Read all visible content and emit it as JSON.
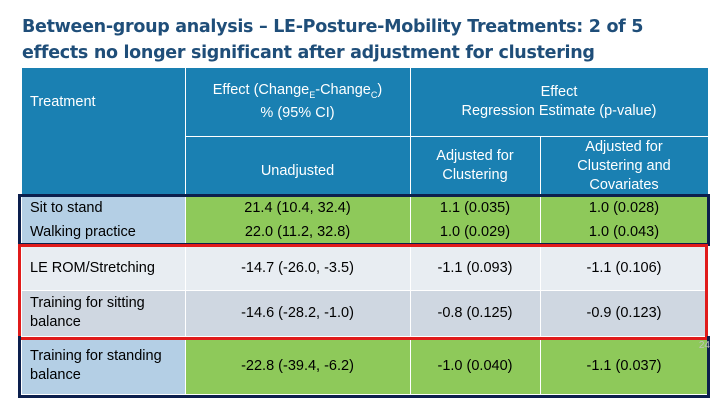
{
  "title": "Between-group analysis – LE-Posture-Mobility Treatments: 2 of 5 effects no longer significant after adjustment for clustering",
  "header": {
    "treatment": "Treatment",
    "effect_line1_pre": "Effect (Change",
    "effect_sub_e": "E",
    "effect_mid": "-Change",
    "effect_sub_c": "C",
    "effect_post": ")",
    "effect_line2": "% (95% CI)",
    "regression_line1": "Effect",
    "regression_line2": "Regression Estimate (p-value)",
    "unadjusted": "Unadjusted",
    "adj_clustering": "Adjusted for Clustering",
    "adj_clustering_cov": "Adjusted for Clustering and Covariates"
  },
  "rows": [
    {
      "treatment": "Sit to stand",
      "effect": "21.4 (10.4, 32.4)",
      "adj_c": "1.1 (0.035)",
      "adj_cc": "1.0 (0.028)"
    },
    {
      "treatment": "Walking practice",
      "effect": "22.0 (11.2, 32.8)",
      "adj_c": "1.0 (0.029)",
      "adj_cc": "1.0 (0.043)"
    },
    {
      "treatment": "LE ROM/Stretching",
      "effect": "-14.7 (-26.0, -3.5)",
      "adj_c": "-1.1 (0.093)",
      "adj_cc": "-1.1 (0.106)"
    },
    {
      "treatment": "Training for sitting balance",
      "effect": "-14.6 (-28.2, -1.0)",
      "adj_c": "-0.8 (0.125)",
      "adj_cc": "-0.9 (0.123)"
    },
    {
      "treatment": "Training for standing balance",
      "effect": "-22.8 (-39.4, -6.2)",
      "adj_c": "-1.0 (0.040)",
      "adj_cc": "-1.1 (0.037)"
    }
  ],
  "page_number": "24",
  "colors": {
    "header": "#1a80b2",
    "green": "#8ec95a",
    "highlight_red": "#e01b1b",
    "highlight_navy": "#0c1f4d"
  }
}
